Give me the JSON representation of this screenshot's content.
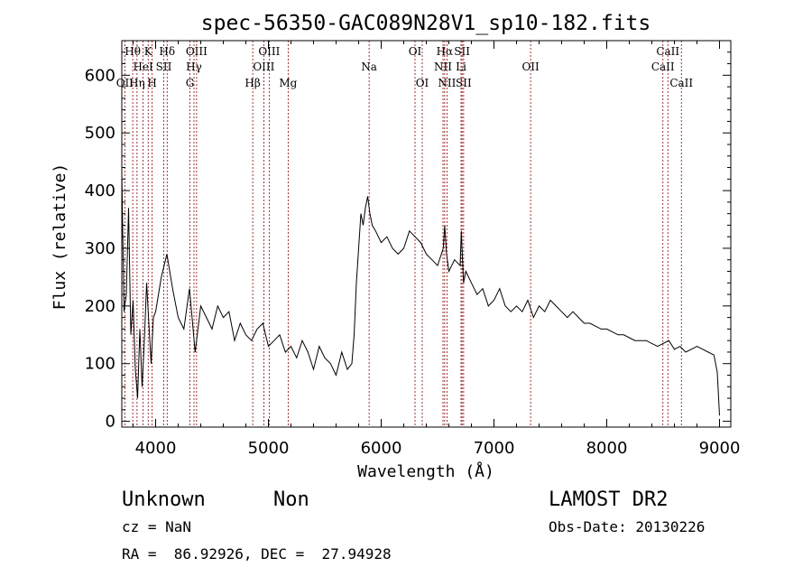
{
  "chart_data": {
    "type": "line",
    "title": "spec-56350-GAC089N28V1_sp10-182.fits",
    "xlabel": "Wavelength (Å)",
    "ylabel": "Flux (relative)",
    "xlim": [
      3700,
      9100
    ],
    "ylim": [
      -10,
      660
    ],
    "xticks": [
      4000,
      5000,
      6000,
      7000,
      8000,
      9000
    ],
    "yticks": [
      0,
      100,
      200,
      300,
      400,
      500,
      600
    ],
    "grid": false,
    "line_color": "#000000",
    "marker_color": "#8b0000",
    "series": [
      {
        "x": [
          3700,
          3720,
          3740,
          3760,
          3780,
          3800,
          3820,
          3840,
          3860,
          3880,
          3900,
          3920,
          3940,
          3960,
          3980,
          4000,
          4050,
          4100,
          4150,
          4200,
          4250,
          4300,
          4350,
          4400,
          4450,
          4500,
          4550,
          4600,
          4650,
          4700,
          4750,
          4800,
          4850,
          4900,
          4950,
          5000,
          5050,
          5100,
          5150,
          5200,
          5250,
          5300,
          5350,
          5400,
          5450,
          5500,
          5550,
          5600,
          5650,
          5700,
          5740,
          5760,
          5780,
          5800,
          5820,
          5840,
          5860,
          5880,
          5900,
          5920,
          5950,
          6000,
          6050,
          6100,
          6150,
          6200,
          6250,
          6300,
          6350,
          6400,
          6450,
          6500,
          6550,
          6563,
          6580,
          6600,
          6650,
          6700,
          6710,
          6730,
          6750,
          6800,
          6850,
          6900,
          6950,
          7000,
          7050,
          7100,
          7150,
          7200,
          7250,
          7300,
          7350,
          7400,
          7450,
          7500,
          7550,
          7600,
          7650,
          7700,
          7750,
          7800,
          7850,
          7900,
          7950,
          8000,
          8050,
          8100,
          8150,
          8200,
          8250,
          8300,
          8350,
          8400,
          8450,
          8500,
          8550,
          8600,
          8650,
          8700,
          8750,
          8800,
          8850,
          8900,
          8950,
          8980,
          9000
        ],
        "y": [
          430,
          190,
          220,
          370,
          150,
          210,
          90,
          40,
          160,
          60,
          140,
          240,
          170,
          100,
          180,
          190,
          250,
          290,
          230,
          180,
          160,
          230,
          120,
          200,
          180,
          160,
          200,
          180,
          190,
          140,
          170,
          150,
          140,
          160,
          170,
          130,
          140,
          150,
          120,
          130,
          110,
          140,
          120,
          90,
          130,
          110,
          100,
          80,
          120,
          90,
          100,
          150,
          240,
          300,
          360,
          340,
          370,
          390,
          360,
          340,
          330,
          310,
          320,
          300,
          290,
          300,
          330,
          320,
          310,
          290,
          280,
          270,
          300,
          340,
          290,
          260,
          280,
          270,
          330,
          240,
          260,
          240,
          220,
          230,
          200,
          210,
          230,
          200,
          190,
          200,
          190,
          210,
          180,
          200,
          190,
          210,
          200,
          190,
          180,
          190,
          180,
          170,
          170,
          165,
          160,
          160,
          155,
          150,
          150,
          145,
          140,
          140,
          140,
          135,
          130,
          135,
          140,
          125,
          130,
          120,
          125,
          130,
          125,
          120,
          115,
          85,
          10
        ]
      }
    ],
    "line_markers": [
      {
        "label": "Hθ",
        "x": 3797,
        "row": 1
      },
      {
        "label": "OII",
        "x": 3727,
        "row": 3
      },
      {
        "label": "HeI",
        "x": 3889,
        "row": 2
      },
      {
        "label": "K",
        "x": 3934,
        "row": 1
      },
      {
        "label": "Hη",
        "x": 3835,
        "row": 3
      },
      {
        "label": "SII",
        "x": 4072,
        "row": 2
      },
      {
        "label": "H",
        "x": 3969,
        "row": 3
      },
      {
        "label": "Hδ",
        "x": 4102,
        "row": 1
      },
      {
        "label": "OIII",
        "x": 4363,
        "row": 1
      },
      {
        "label": "Hγ",
        "x": 4340,
        "row": 2
      },
      {
        "label": "G",
        "x": 4304,
        "row": 3
      },
      {
        "label": "OIII",
        "x": 5007,
        "row": 1
      },
      {
        "label": "OIII",
        "x": 4959,
        "row": 2
      },
      {
        "label": "Hβ",
        "x": 4861,
        "row": 3
      },
      {
        "label": "Mg",
        "x": 5175,
        "row": 3
      },
      {
        "label": "Na",
        "x": 5893,
        "row": 2
      },
      {
        "label": "OI",
        "x": 6300,
        "row": 1
      },
      {
        "label": "OI",
        "x": 6364,
        "row": 3
      },
      {
        "label": "Hα",
        "x": 6563,
        "row": 1
      },
      {
        "label": "SII",
        "x": 6717,
        "row": 1
      },
      {
        "label": "NII",
        "x": 6548,
        "row": 2
      },
      {
        "label": "Li",
        "x": 6708,
        "row": 2
      },
      {
        "label": "NII",
        "x": 6583,
        "row": 3
      },
      {
        "label": "SII",
        "x": 6731,
        "row": 3
      },
      {
        "label": "OII",
        "x": 7325,
        "row": 2
      },
      {
        "label": "CaII",
        "x": 8542,
        "row": 1
      },
      {
        "label": "CaII",
        "x": 8498,
        "row": 2
      },
      {
        "label": "CaII",
        "x": 8662,
        "row": 3
      }
    ]
  },
  "info": {
    "class": "Unknown",
    "subclass": "Non",
    "survey": "LAMOST DR2",
    "cz": "cz = NaN",
    "obs_date": "Obs-Date: 20130226",
    "coords": "RA =  86.92926, DEC =  27.94928"
  }
}
